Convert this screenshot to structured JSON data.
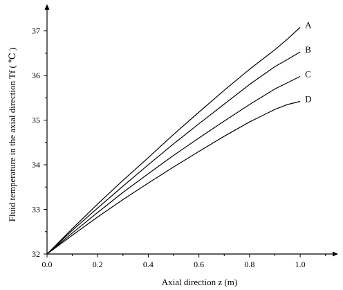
{
  "chart_data": {
    "type": "line",
    "xlabel": "Axial direction   z   (m)",
    "ylabel": "Fluid temperature in the axial direction Tf  (  ℃  )",
    "xlim": [
      0.0,
      1.15
    ],
    "ylim": [
      32.0,
      37.6
    ],
    "x_ticks": [
      "0.0",
      "0.2",
      "0.4",
      "0.6",
      "0.8",
      "1.0"
    ],
    "y_ticks": [
      "32",
      "33",
      "34",
      "35",
      "36",
      "37"
    ],
    "series": [
      {
        "name": "A",
        "x": [
          0.0,
          0.1,
          0.2,
          0.3,
          0.4,
          0.5,
          0.6,
          0.7,
          0.8,
          0.9,
          0.95,
          1.0
        ],
        "y": [
          32.0,
          32.57,
          33.12,
          33.65,
          34.16,
          34.68,
          35.18,
          35.67,
          36.14,
          36.58,
          36.82,
          37.08
        ]
      },
      {
        "name": "B",
        "x": [
          0.0,
          0.1,
          0.2,
          0.3,
          0.4,
          0.5,
          0.6,
          0.7,
          0.8,
          0.9,
          0.95,
          1.0
        ],
        "y": [
          32.0,
          32.53,
          33.03,
          33.52,
          34.0,
          34.47,
          34.92,
          35.36,
          35.8,
          36.2,
          36.36,
          36.53
        ]
      },
      {
        "name": "C",
        "x": [
          0.0,
          0.1,
          0.2,
          0.3,
          0.4,
          0.5,
          0.6,
          0.7,
          0.8,
          0.9,
          0.95,
          1.0
        ],
        "y": [
          32.0,
          32.47,
          32.93,
          33.38,
          33.8,
          34.21,
          34.6,
          34.98,
          35.35,
          35.7,
          35.84,
          35.98
        ]
      },
      {
        "name": "D",
        "x": [
          0.0,
          0.1,
          0.2,
          0.3,
          0.4,
          0.5,
          0.6,
          0.7,
          0.8,
          0.9,
          0.95,
          1.0
        ],
        "y": [
          32.0,
          32.42,
          32.83,
          33.22,
          33.59,
          33.95,
          34.3,
          34.64,
          34.96,
          35.24,
          35.35,
          35.42
        ]
      }
    ]
  }
}
